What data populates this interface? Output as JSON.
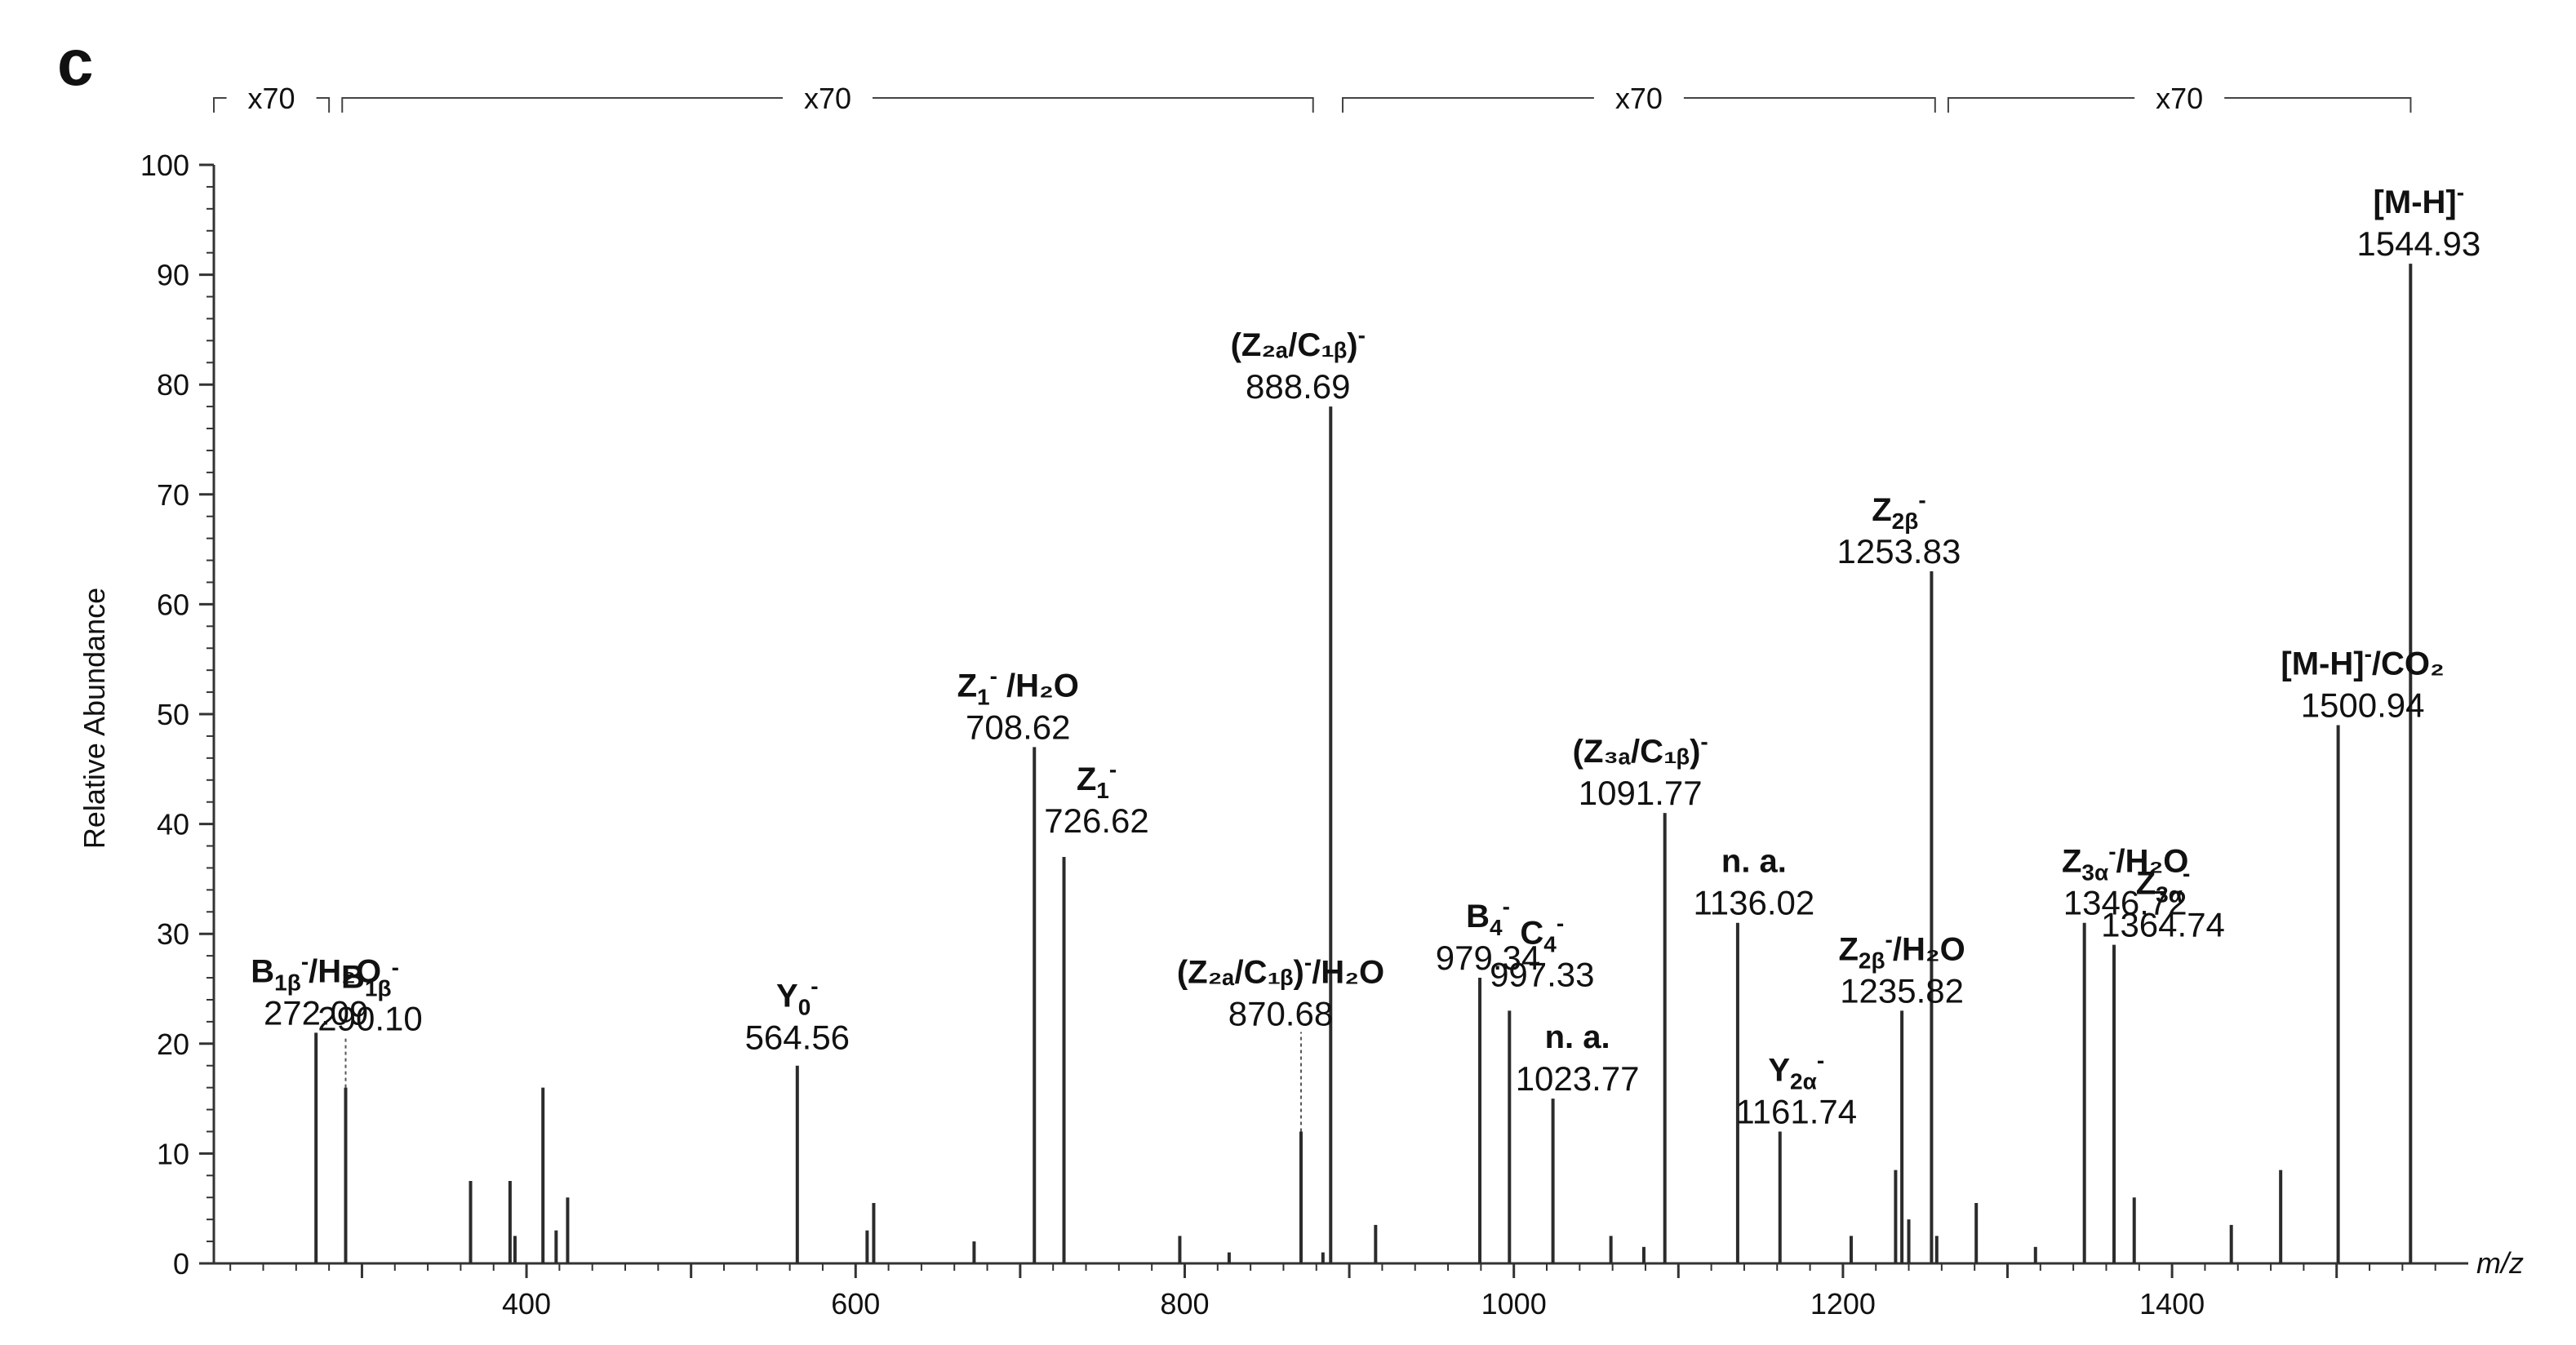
{
  "panel_label": "c",
  "chart_data": {
    "type": "bar",
    "xlabel": "m/z",
    "ylabel": "Relative Abundance",
    "xlim": [
      210,
      1580
    ],
    "ylim": [
      0,
      100
    ],
    "x_ticks": [
      400,
      600,
      800,
      1000,
      1200,
      1400
    ],
    "y_ticks": [
      0,
      10,
      20,
      30,
      40,
      50,
      60,
      70,
      80,
      90,
      100
    ],
    "grid": false,
    "legend": "none",
    "bar_color": "#2b2b2b",
    "magnification_segments": [
      {
        "label": "x70",
        "x_start": 210,
        "x_end": 280
      },
      {
        "label": "x70",
        "x_start": 288,
        "x_end": 878
      },
      {
        "label": "x70",
        "x_start": 896,
        "x_end": 1256
      },
      {
        "label": "x70",
        "x_start": 1264,
        "x_end": 1545
      }
    ],
    "labeled_peaks": [
      {
        "mz": 272.09,
        "intensity": 21,
        "label_main": "B",
        "label_sub": "1β",
        "label_sup": "-",
        "label_suffix": "/H₂O",
        "mz_text": "272.09"
      },
      {
        "mz": 290.1,
        "intensity": 16,
        "label_main": "B",
        "label_sub": "1β",
        "label_sup": "-",
        "label_suffix": "",
        "mz_text": "290.10"
      },
      {
        "mz": 564.56,
        "intensity": 18,
        "label_main": "Y",
        "label_sub": "0",
        "label_sup": "-",
        "label_suffix": "",
        "mz_text": "564.56"
      },
      {
        "mz": 708.62,
        "intensity": 47,
        "label_main": "Z",
        "label_sub": "1",
        "label_sup": "-",
        "label_suffix": " /H₂O",
        "mz_text": "708.62"
      },
      {
        "mz": 726.62,
        "intensity": 37,
        "label_main": "Z",
        "label_sub": "1",
        "label_sup": "-",
        "label_suffix": "",
        "mz_text": "726.62"
      },
      {
        "mz": 870.68,
        "intensity": 12,
        "label_main": "(Z₂ₐ/C₁ᵦ)",
        "label_sub": "",
        "label_sup": "-",
        "label_suffix": "/H₂O",
        "mz_text": "870.68"
      },
      {
        "mz": 888.69,
        "intensity": 78,
        "label_main": "(Z₂ₐ/C₁ᵦ)",
        "label_sub": "",
        "label_sup": "-",
        "label_suffix": "",
        "mz_text": "888.69"
      },
      {
        "mz": 979.34,
        "intensity": 26,
        "label_main": "B",
        "label_sub": "4",
        "label_sup": "-",
        "label_suffix": "",
        "mz_text": "979.34"
      },
      {
        "mz": 997.33,
        "intensity": 23,
        "label_main": "C",
        "label_sub": "4",
        "label_sup": "-",
        "label_suffix": "",
        "mz_text": "997.33"
      },
      {
        "mz": 1023.77,
        "intensity": 15,
        "label_main": "n. a.",
        "label_sub": "",
        "label_sup": "",
        "label_suffix": "",
        "mz_text": "1023.77"
      },
      {
        "mz": 1091.77,
        "intensity": 41,
        "label_main": "(Z₃ₐ/C₁ᵦ)",
        "label_sub": "",
        "label_sup": "-",
        "label_suffix": "",
        "mz_text": "1091.77"
      },
      {
        "mz": 1136.02,
        "intensity": 31,
        "label_main": "n. a.",
        "label_sub": "",
        "label_sup": "",
        "label_suffix": "",
        "mz_text": "1136.02"
      },
      {
        "mz": 1161.74,
        "intensity": 12,
        "label_main": "Y",
        "label_sub": "2α",
        "label_sup": "-",
        "label_suffix": "",
        "mz_text": "1161.74"
      },
      {
        "mz": 1235.82,
        "intensity": 23,
        "label_main": "Z",
        "label_sub": "2β",
        "label_sup": "-",
        "label_suffix": "/H₂O",
        "mz_text": "1235.82"
      },
      {
        "mz": 1253.83,
        "intensity": 63,
        "label_main": "Z",
        "label_sub": "2β",
        "label_sup": "-",
        "label_suffix": "",
        "mz_text": "1253.83"
      },
      {
        "mz": 1346.72,
        "intensity": 31,
        "label_main": "Z",
        "label_sub": "3α",
        "label_sup": "-",
        "label_suffix": "/H₂O",
        "mz_text": "1346.72"
      },
      {
        "mz": 1364.74,
        "intensity": 29,
        "label_main": "Z",
        "label_sub": "3α",
        "label_sup": "-",
        "label_suffix": "",
        "mz_text": "1364.74"
      },
      {
        "mz": 1500.94,
        "intensity": 49,
        "label_main": "[M-H]",
        "label_sub": "",
        "label_sup": "-",
        "label_suffix": "/CO₂",
        "mz_text": "1500.94"
      },
      {
        "mz": 1544.93,
        "intensity": 91,
        "label_main": "[M-H]",
        "label_sub": "",
        "label_sup": "-",
        "label_suffix": "",
        "mz_text": "1544.93"
      }
    ],
    "minor_peaks": [
      {
        "mz": 366,
        "intensity": 7.5
      },
      {
        "mz": 390,
        "intensity": 7.5
      },
      {
        "mz": 393,
        "intensity": 2.5
      },
      {
        "mz": 410,
        "intensity": 16
      },
      {
        "mz": 418,
        "intensity": 3
      },
      {
        "mz": 425,
        "intensity": 6
      },
      {
        "mz": 607,
        "intensity": 3
      },
      {
        "mz": 611,
        "intensity": 5.5
      },
      {
        "mz": 672,
        "intensity": 2
      },
      {
        "mz": 797,
        "intensity": 2.5
      },
      {
        "mz": 827,
        "intensity": 1
      },
      {
        "mz": 884,
        "intensity": 1
      },
      {
        "mz": 916,
        "intensity": 3.5
      },
      {
        "mz": 1059,
        "intensity": 2.5
      },
      {
        "mz": 1079,
        "intensity": 1.5
      },
      {
        "mz": 1205,
        "intensity": 2.5
      },
      {
        "mz": 1232,
        "intensity": 8.5
      },
      {
        "mz": 1240,
        "intensity": 4
      },
      {
        "mz": 1257,
        "intensity": 2.5
      },
      {
        "mz": 1281,
        "intensity": 5.5
      },
      {
        "mz": 1317,
        "intensity": 1.5
      },
      {
        "mz": 1377,
        "intensity": 6
      },
      {
        "mz": 1436,
        "intensity": 3.5
      },
      {
        "mz": 1466,
        "intensity": 8.5
      }
    ]
  }
}
